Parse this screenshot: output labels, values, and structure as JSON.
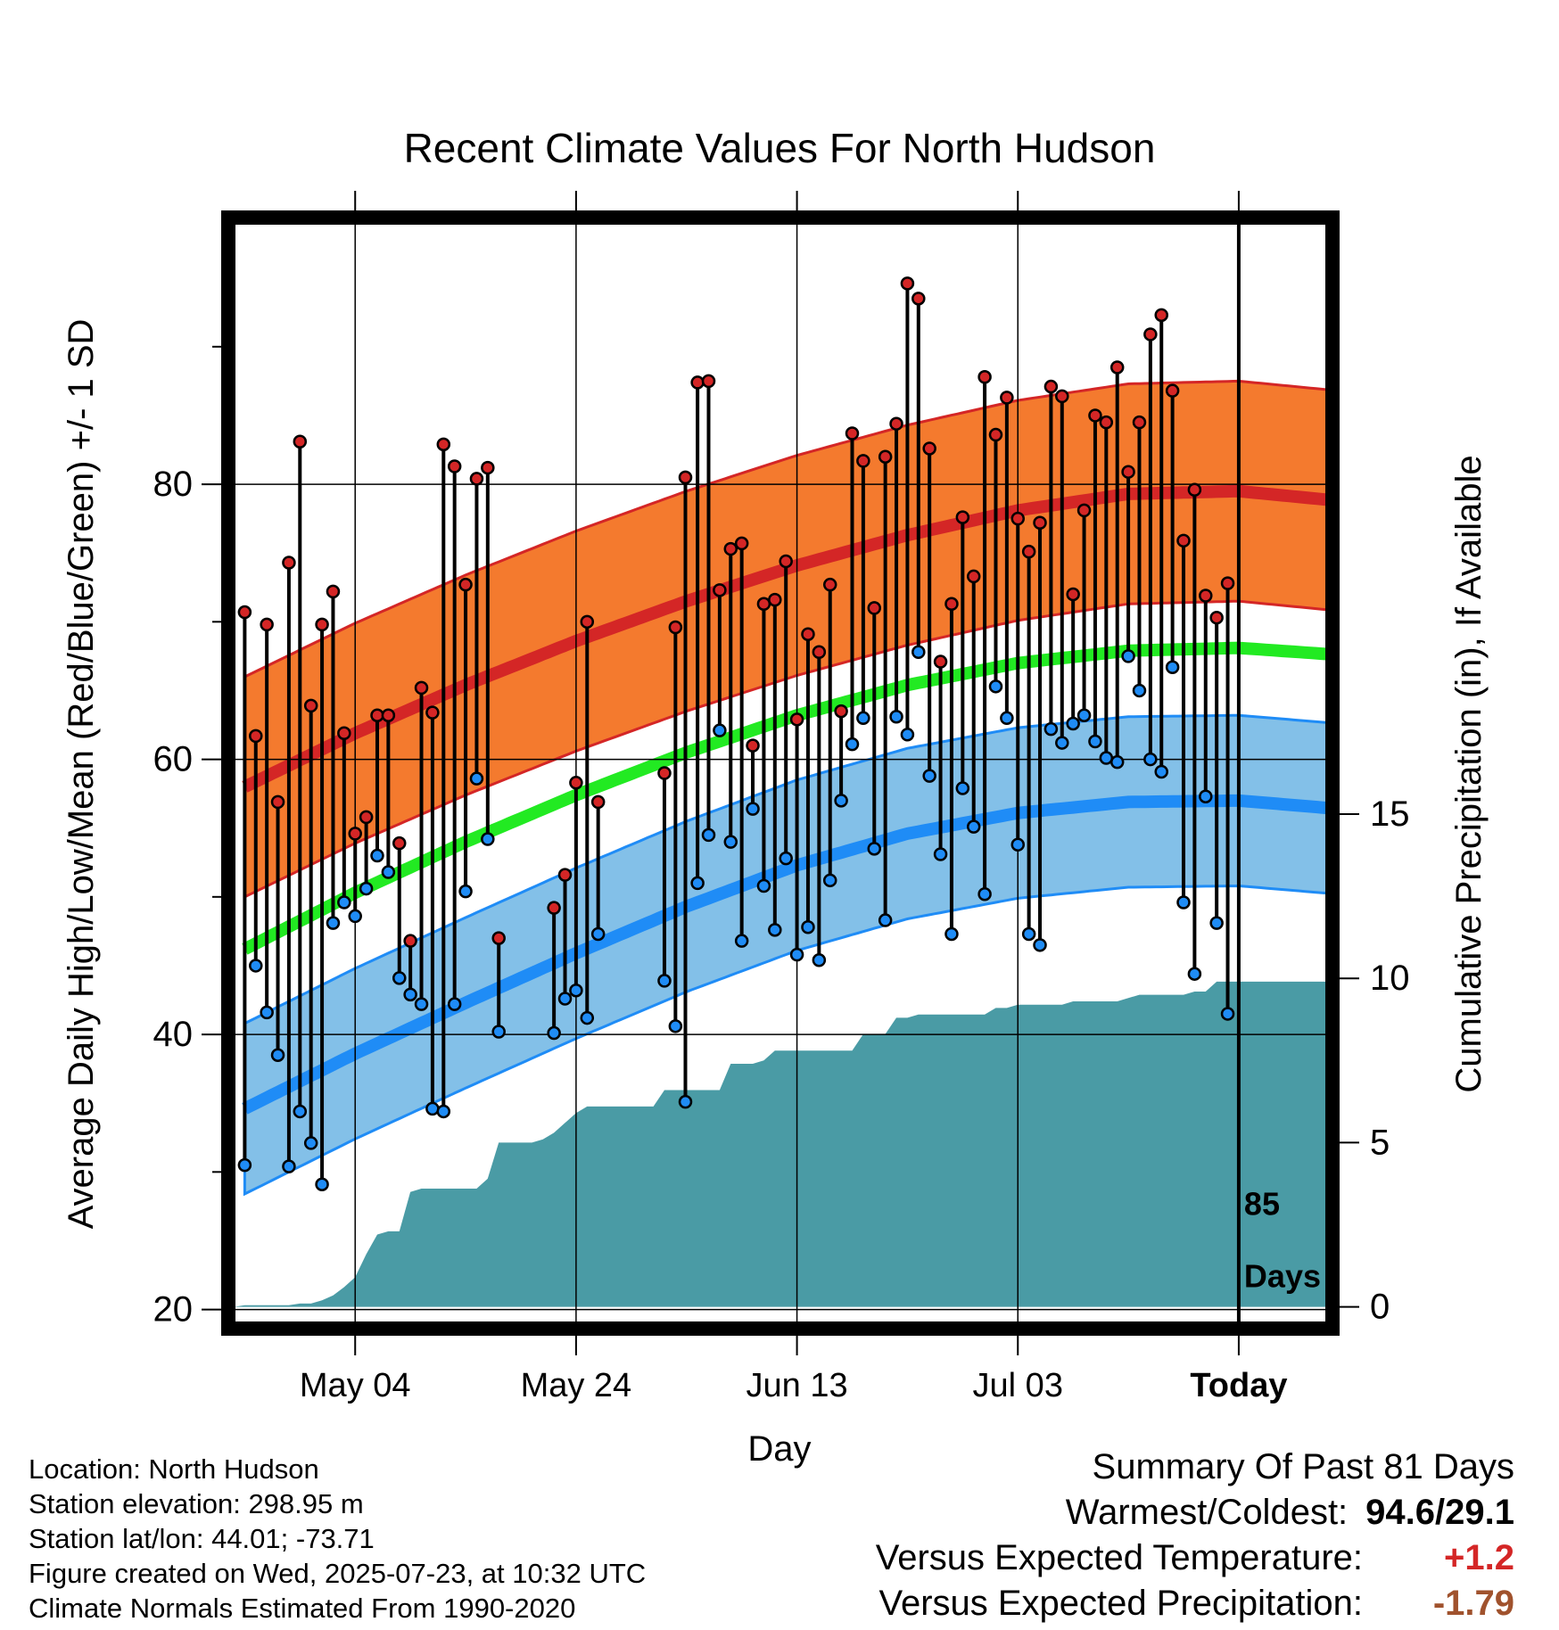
{
  "chart_data": {
    "type": "line",
    "title": "Recent Climate Values For North Hudson",
    "xlabel": "Day",
    "ylabel": "Average Daily High/Low/Mean (Red/Blue/Green) +/- 1 SD",
    "y2label": "Cumulative Precipitation (in), If Available",
    "xlim": [
      -11,
      88
    ],
    "ylim": [
      19,
      99
    ],
    "y2lim": [
      -0.5,
      33
    ],
    "xtick_positions": [
      0,
      20,
      40,
      60,
      80
    ],
    "xtick_labels": [
      "May 04",
      "May 24",
      "Jun 13",
      "Jul 03",
      "Today"
    ],
    "ytick_values": [
      20,
      40,
      60,
      80
    ],
    "ytick_minor": [
      30,
      50,
      70,
      90
    ],
    "y2tick_values": [
      0,
      5,
      10,
      15
    ],
    "today_x": 80,
    "today_label": [
      "85",
      "Days"
    ],
    "normals": {
      "high_mean": [
        [
          -10,
          58.0
        ],
        [
          0,
          61.9
        ],
        [
          10,
          65.4
        ],
        [
          20,
          68.6
        ],
        [
          30,
          71.5
        ],
        [
          40,
          74.1
        ],
        [
          50,
          76.3
        ],
        [
          60,
          78.1
        ],
        [
          70,
          79.3
        ],
        [
          80,
          79.5
        ],
        [
          89,
          78.8
        ]
      ],
      "high_sd": 8.0,
      "mean": [
        [
          -10,
          46.2
        ],
        [
          0,
          50.3
        ],
        [
          10,
          54.0
        ],
        [
          20,
          57.4
        ],
        [
          30,
          60.5
        ],
        [
          40,
          63.2
        ],
        [
          50,
          65.4
        ],
        [
          60,
          67.0
        ],
        [
          70,
          67.9
        ],
        [
          80,
          68.1
        ],
        [
          89,
          67.6
        ]
      ],
      "low_mean": [
        [
          -10,
          34.6
        ],
        [
          0,
          38.6
        ],
        [
          10,
          42.3
        ],
        [
          20,
          45.9
        ],
        [
          30,
          49.3
        ],
        [
          40,
          52.3
        ],
        [
          50,
          54.6
        ],
        [
          60,
          56.1
        ],
        [
          70,
          56.9
        ],
        [
          80,
          57.0
        ],
        [
          89,
          56.4
        ]
      ],
      "low_sd": 6.2,
      "colors": {
        "high_band": "#f47a2e",
        "high_line": "#d42626",
        "mean_line": "#22ea22",
        "low_band": "#83c0e8",
        "low_line": "#1f8cf6"
      }
    },
    "series": [
      {
        "name": "High",
        "color": "#d42626",
        "x": [
          -10,
          -9,
          -8,
          -7,
          -6,
          -5,
          -4,
          -3,
          -2,
          -1,
          0,
          1,
          2,
          3,
          4,
          5,
          6,
          7,
          8,
          9,
          10,
          11,
          12,
          13,
          18,
          19,
          20,
          21,
          22,
          28,
          29,
          29.9,
          31,
          32,
          33,
          34,
          35,
          36,
          37,
          38,
          39,
          40,
          41,
          42,
          43,
          44,
          45,
          46,
          47,
          48,
          49,
          50,
          51,
          52,
          53,
          54,
          55,
          56,
          57,
          58,
          59,
          60,
          61,
          62,
          63,
          64,
          65,
          66,
          67,
          68,
          69,
          70,
          71,
          72,
          73,
          74,
          75,
          76,
          77,
          78,
          79
        ],
        "values": [
          70.7,
          61.7,
          69.8,
          56.9,
          74.3,
          83.1,
          63.9,
          69.8,
          72.2,
          61.9,
          54.6,
          55.8,
          63.2,
          63.2,
          53.9,
          46.8,
          65.2,
          63.4,
          82.9,
          81.3,
          72.7,
          80.4,
          81.2,
          47.0,
          49.2,
          51.6,
          58.3,
          70.0,
          56.9,
          59.0,
          69.6,
          80.5,
          87.4,
          87.5,
          72.3,
          75.3,
          75.7,
          61.0,
          71.3,
          71.6,
          74.4,
          62.9,
          69.1,
          67.8,
          72.7,
          63.5,
          83.7,
          81.7,
          71.0,
          82.0,
          84.4,
          94.6,
          93.5,
          82.6,
          67.1,
          71.3,
          77.6,
          73.3,
          87.8,
          83.6,
          86.3,
          77.5,
          75.1,
          77.2,
          87.1,
          86.4,
          72.0,
          78.1,
          85.0,
          84.5,
          88.5,
          80.9,
          84.5,
          90.9,
          92.3,
          86.8,
          75.9,
          79.6,
          71.9,
          70.3,
          72.8
        ]
      },
      {
        "name": "Low",
        "color": "#1f8cf6",
        "x": [
          -10,
          -9,
          -8,
          -7,
          -6,
          -5,
          -4,
          -3,
          -2,
          -1,
          0,
          1,
          2,
          3,
          4,
          5,
          6,
          7,
          8,
          9,
          10,
          11,
          12,
          13,
          18,
          19,
          20,
          21,
          22,
          28,
          29,
          29.9,
          31,
          32,
          33,
          34,
          35,
          36,
          37,
          38,
          39,
          40,
          41,
          42,
          43,
          44,
          45,
          46,
          47,
          48,
          49,
          50,
          51,
          52,
          53,
          54,
          55,
          56,
          57,
          58,
          59,
          60,
          61,
          62,
          63,
          64,
          65,
          66,
          67,
          68,
          69,
          70,
          71,
          72,
          73,
          74,
          75,
          76,
          77,
          78,
          79
        ],
        "values": [
          30.5,
          45.0,
          41.6,
          38.5,
          30.4,
          34.4,
          32.1,
          29.1,
          48.1,
          49.6,
          48.6,
          50.6,
          53.0,
          51.8,
          44.1,
          42.9,
          42.2,
          34.6,
          34.4,
          42.2,
          50.4,
          58.6,
          54.2,
          40.2,
          40.1,
          42.6,
          43.2,
          41.2,
          47.3,
          43.9,
          40.6,
          35.1,
          51.0,
          54.5,
          62.1,
          54.0,
          46.8,
          56.4,
          50.8,
          47.6,
          52.8,
          45.8,
          47.8,
          45.4,
          51.2,
          57.0,
          61.1,
          63.0,
          53.5,
          48.3,
          63.1,
          61.8,
          67.8,
          58.8,
          53.1,
          47.3,
          57.9,
          55.1,
          50.2,
          65.3,
          63.0,
          53.8,
          47.3,
          46.5,
          62.2,
          61.2,
          62.6,
          63.2,
          61.3,
          60.1,
          59.8,
          67.5,
          65.0,
          60.0,
          59.1,
          66.7,
          49.6,
          44.4,
          57.3,
          48.1,
          41.5
        ]
      }
    ],
    "precipitation": {
      "name": "Cumulative Precipitation",
      "color": "#4a9ba5",
      "x": [
        -11,
        -10,
        -9,
        -8,
        -7,
        -6,
        -5,
        -4,
        -3,
        -2,
        -1,
        0,
        1,
        2,
        3,
        4,
        5,
        6,
        7,
        8,
        9,
        10,
        11,
        12,
        13,
        14,
        15,
        16,
        17,
        18,
        19,
        20,
        21,
        22,
        23,
        24,
        25,
        26,
        27,
        28,
        29,
        30,
        31,
        32,
        33,
        34,
        35,
        36,
        37,
        38,
        39,
        40,
        41,
        42,
        43,
        44,
        45,
        46,
        47,
        48,
        49,
        50,
        51,
        52,
        53,
        54,
        55,
        56,
        57,
        58,
        59,
        60,
        61,
        62,
        63,
        64,
        65,
        66,
        67,
        68,
        69,
        70,
        71,
        72,
        73,
        74,
        75,
        76,
        77,
        78,
        79,
        80,
        89
      ],
      "values": [
        0.0,
        0.05,
        0.05,
        0.05,
        0.05,
        0.05,
        0.1,
        0.1,
        0.2,
        0.35,
        0.6,
        0.9,
        1.6,
        2.2,
        2.3,
        2.3,
        3.5,
        3.6,
        3.6,
        3.6,
        3.6,
        3.6,
        3.6,
        3.9,
        5.0,
        5.0,
        5.0,
        5.0,
        5.1,
        5.3,
        5.6,
        5.9,
        6.1,
        6.1,
        6.1,
        6.1,
        6.1,
        6.1,
        6.1,
        6.6,
        6.6,
        6.6,
        6.6,
        6.6,
        6.6,
        7.4,
        7.4,
        7.4,
        7.5,
        7.8,
        7.8,
        7.8,
        7.8,
        7.8,
        7.8,
        7.8,
        7.8,
        8.3,
        8.3,
        8.3,
        8.8,
        8.8,
        8.9,
        8.9,
        8.9,
        8.9,
        8.9,
        8.9,
        8.9,
        9.1,
        9.1,
        9.2,
        9.2,
        9.2,
        9.2,
        9.2,
        9.3,
        9.3,
        9.3,
        9.3,
        9.3,
        9.4,
        9.5,
        9.5,
        9.5,
        9.5,
        9.5,
        9.6,
        9.6,
        9.9,
        9.9,
        9.9,
        9.9
      ]
    }
  },
  "location": {
    "location_line": "Location: North Hudson",
    "elevation_line": "Station elevation: 298.95 m",
    "latlon_line": "Station lat/lon: 44.01; -73.71",
    "created_line": "Figure created on Wed, 2025-07-23, at 10:32 UTC",
    "normals_line": "Climate Normals Estimated From 1990-2020"
  },
  "summary": {
    "title": "Summary Of Past 81 Days",
    "warmest_coldest_label": "Warmest/Coldest:",
    "warmest_coldest_value": "94.6/29.1",
    "temp_label": "Versus Expected Temperature:",
    "temp_value": "+1.2",
    "temp_color": "#d42626",
    "precip_label": "Versus Expected Precipitation:",
    "precip_value": "-1.79",
    "precip_color": "#a0522d"
  }
}
